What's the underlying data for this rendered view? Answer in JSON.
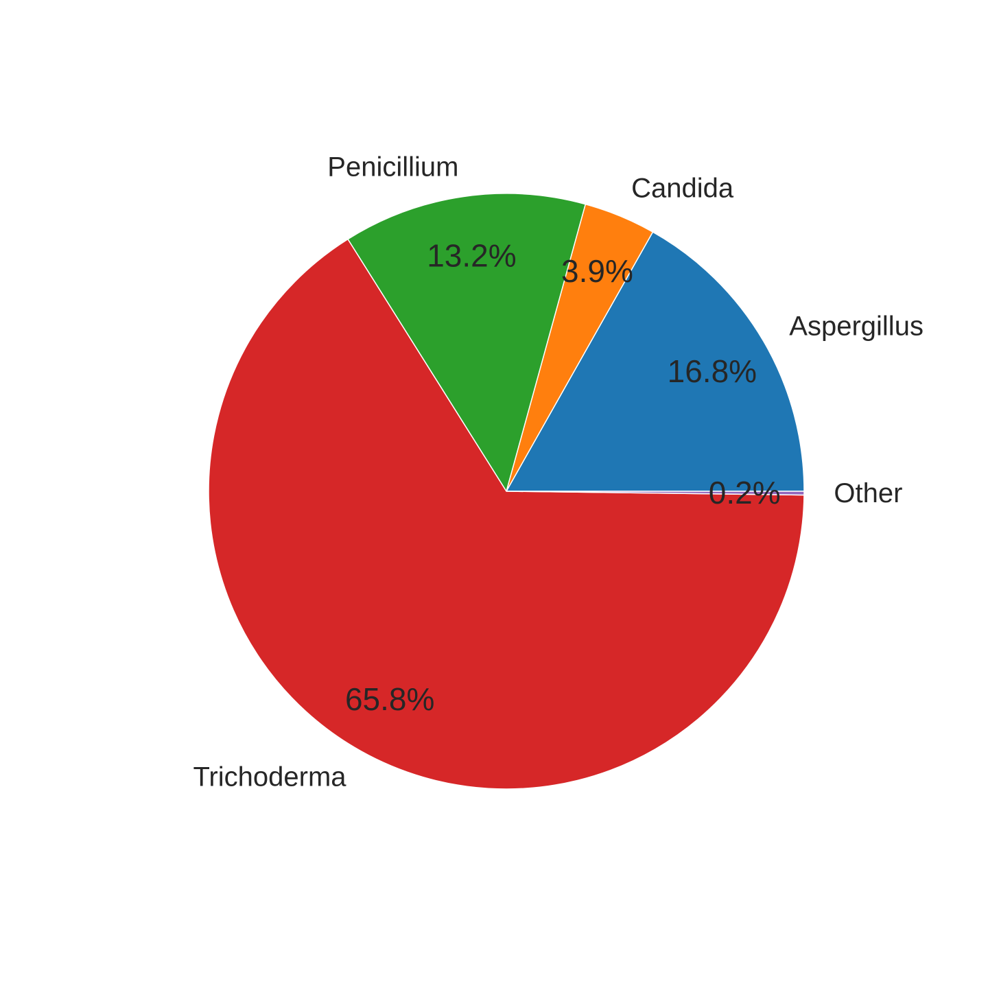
{
  "chart_data": {
    "type": "pie",
    "start_angle_deg": 0,
    "direction": "counterclockwise",
    "slices": [
      {
        "label": "Aspergillus",
        "value": 16.8,
        "pct_label": "16.8%",
        "color": "#1f77b4"
      },
      {
        "label": "Candida",
        "value": 3.9,
        "pct_label": "3.9%",
        "color": "#ff7f0e"
      },
      {
        "label": "Penicillium",
        "value": 13.2,
        "pct_label": "13.2%",
        "color": "#2ca02c"
      },
      {
        "label": "Trichoderma",
        "value": 65.8,
        "pct_label": "65.8%",
        "color": "#d62728"
      },
      {
        "label": "Other",
        "value": 0.2,
        "pct_label": "0.2%",
        "color": "#9467bd"
      }
    ]
  }
}
